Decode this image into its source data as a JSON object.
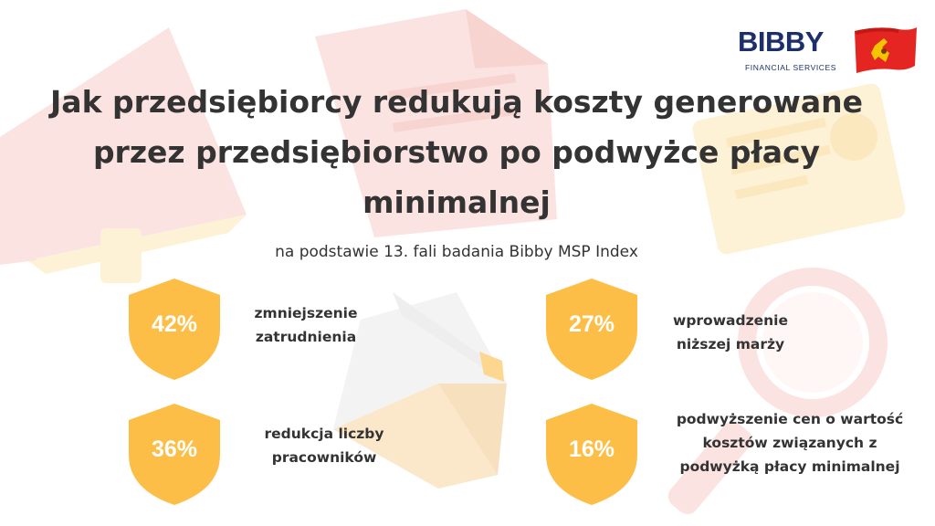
{
  "brand": {
    "name": "BIBBY",
    "tagline": "FINANCIAL SERVICES"
  },
  "title": {
    "line1": "Jak przedsiębiorcy redukują koszty generowane",
    "line2": "przez przedsiębiorstwo po podwyżce płacy",
    "line3": "minimalnej"
  },
  "subtitle": "na podstawie 13. fali badania Bibby MSP Index",
  "stats": [
    {
      "value": "42%",
      "label_line1": "zmniejszenie",
      "label_line2": "zatrudnienia"
    },
    {
      "value": "27%",
      "label_line1": "wprowadzenie",
      "label_line2": "niższej marży"
    },
    {
      "value": "36%",
      "label_line1": "redukcja liczby",
      "label_line2": "pracowników"
    },
    {
      "value": "16%",
      "label_line1": "podwyższenie cen o wartość",
      "label_line2": "kosztów związanych z",
      "label_line3": "podwyżką płacy minimalnej"
    }
  ],
  "colors": {
    "shield": "#fdbe47",
    "text": "#333333",
    "brand_blue": "#1c2f6b",
    "flag_red": "#e52521",
    "watermark_pink": "#fbe3e1",
    "watermark_yellow": "#fdf1d6"
  },
  "icons": [
    "megaphone-icon",
    "document-icon",
    "certificate-icon",
    "envelope-icon",
    "magnifier-icon"
  ]
}
